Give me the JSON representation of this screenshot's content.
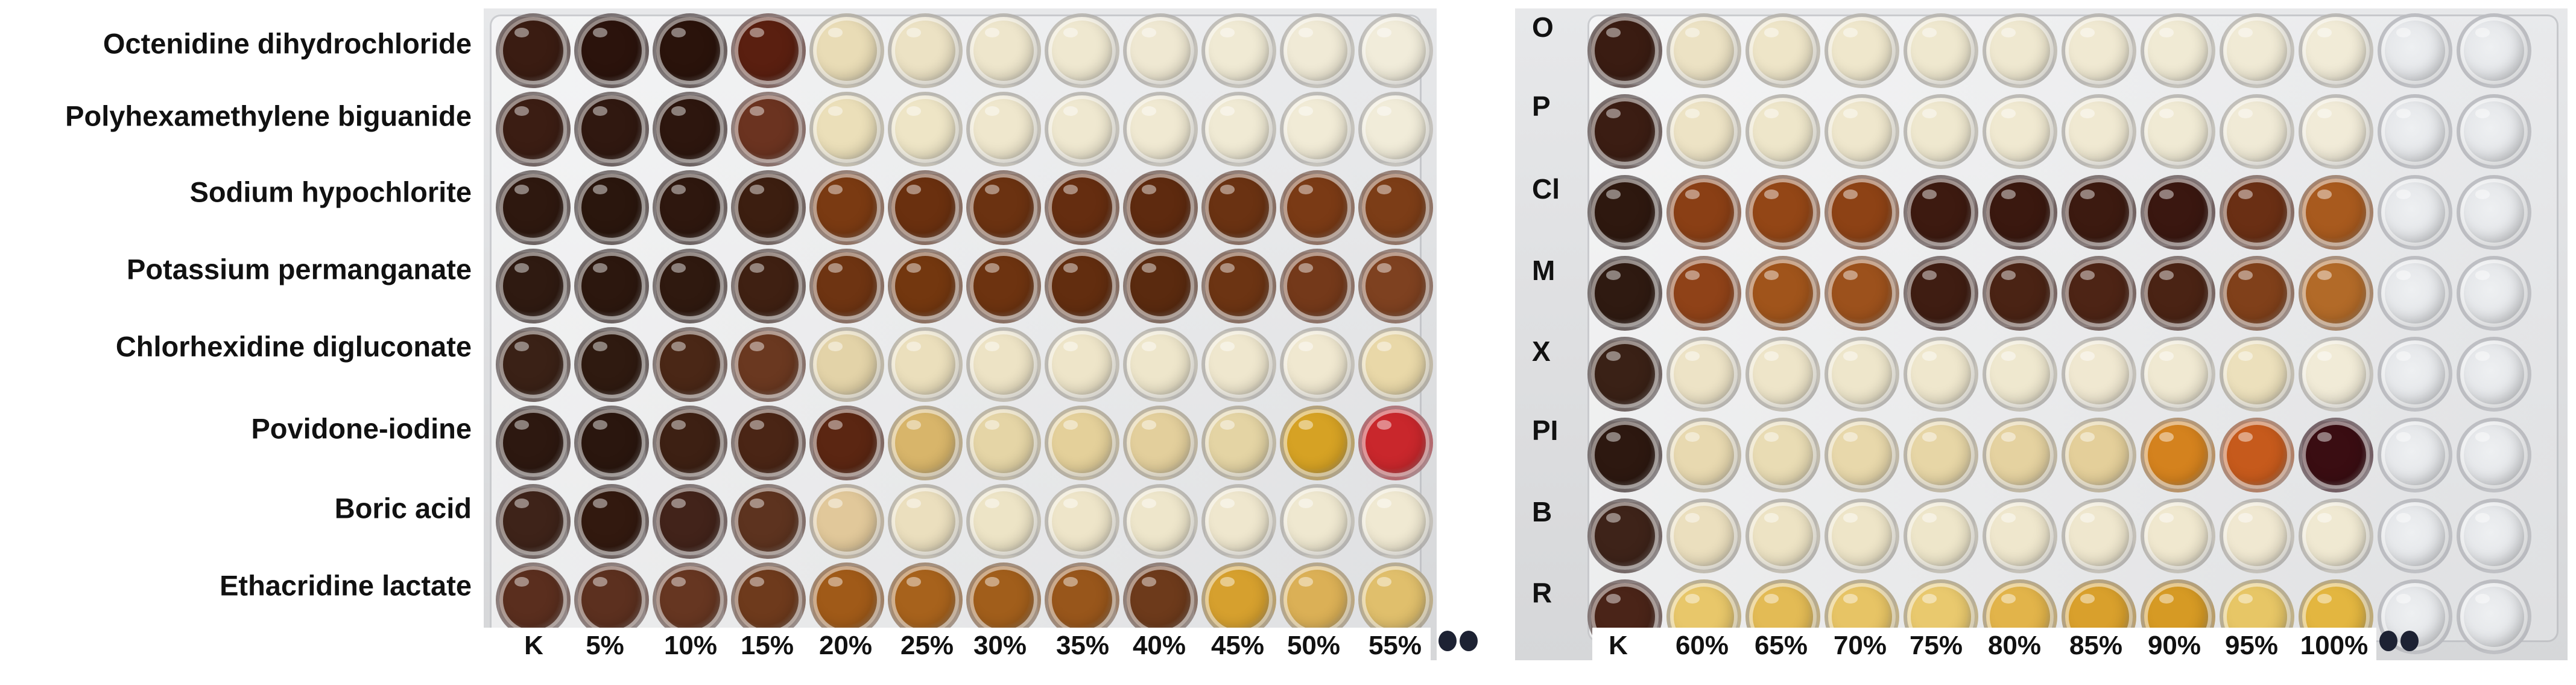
{
  "left_panel": {
    "row_labels": [
      "Octenidine dihydrochloride",
      "Polyhexamethylene biguanide",
      "Sodium hypochlorite",
      "Potassium permanganate",
      "Chlorhexidine digluconate",
      "Povidone-iodine",
      "Boric acid",
      "Ethacridine lactate"
    ],
    "column_labels": [
      "K",
      "5%",
      "10%",
      "15%",
      "20%",
      "25%",
      "30%",
      "35%",
      "40%",
      "45%",
      "50%",
      "55%"
    ],
    "well_colors": [
      [
        "#3a1c12",
        "#2b130c",
        "#2a130b",
        "#5a1f10",
        "#e9dcb6",
        "#ece2c4",
        "#eee6cc",
        "#efe8d0",
        "#efe8d2",
        "#f0ead4",
        "#f0ead6",
        "#f1ecda"
      ],
      [
        "#3b1d13",
        "#301810",
        "#2d160e",
        "#6b3320",
        "#ebdfb9",
        "#eee5c6",
        "#efe7cd",
        "#efe8d0",
        "#f0e9d2",
        "#f0ead4",
        "#f1ebd6",
        "#f1ecd9"
      ],
      [
        "#2e180f",
        "#2a160d",
        "#2e170e",
        "#3c1e10",
        "#7a3a12",
        "#6a300f",
        "#6b3211",
        "#652d10",
        "#5e2a0f",
        "#6a3212",
        "#7a3a15",
        "#7c3d17"
      ],
      [
        "#2f1a11",
        "#2c170e",
        "#2f190f",
        "#3f2012",
        "#6e3412",
        "#73370f",
        "#6d3310",
        "#622d0f",
        "#5a2a0f",
        "#6c3413",
        "#74391a",
        "#7e4120"
      ],
      [
        "#3a2116",
        "#2f1a10",
        "#4a2716",
        "#6a3820",
        "#e3d3a8",
        "#ebdfbc",
        "#ede3c5",
        "#eee5c9",
        "#eee6cb",
        "#efe7ce",
        "#f0e8d0",
        "#e9d8a8"
      ],
      [
        "#2d1810",
        "#2a160e",
        "#3d2013",
        "#4a2515",
        "#5b2612",
        "#d8b56a",
        "#e5d5a6",
        "#e4d09a",
        "#e3cf9c",
        "#e4d4a4",
        "#d6a224",
        "#c9272c"
      ],
      [
        "#3e2319",
        "#32190f",
        "#42231a",
        "#5d331f",
        "#e1c89a",
        "#ebdfbe",
        "#ede4c6",
        "#eee5c9",
        "#eee6cb",
        "#efe7ce",
        "#efe8d0",
        "#f0e9d2"
      ],
      [
        "#5a2e1e",
        "#5c301f",
        "#663621",
        "#6e3a1c",
        "#a05a18",
        "#a7621c",
        "#a15e1b",
        "#98561b",
        "#6d3a1b",
        "#d6a02e",
        "#dbb056",
        "#e0bf6c"
      ]
    ]
  },
  "right_panel": {
    "row_codes": [
      "O",
      "P",
      "Cl",
      "M",
      "X",
      "PI",
      "B",
      "R"
    ],
    "column_labels": [
      "K",
      "60%",
      "65%",
      "70%",
      "75%",
      "80%",
      "85%",
      "90%",
      "95%",
      "100%"
    ],
    "well_colors": [
      [
        "#3a1c12",
        "#ece2c4",
        "#eee5c8",
        "#efe7cc",
        "#efe8cf",
        "#efe8d0",
        "#f0e9d2",
        "#f0ead4",
        "#f0ead5",
        "#f1ebd7"
      ],
      [
        "#3b1d13",
        "#ede3c5",
        "#eee6ca",
        "#efe7cd",
        "#efe8cf",
        "#f0e9d1",
        "#f0e9d2",
        "#f0ead4",
        "#f0ead6",
        "#f1ebd8"
      ],
      [
        "#2e180f",
        "#8a3f15",
        "#934616",
        "#8d4215",
        "#3d1a10",
        "#3a180f",
        "#3c1a10",
        "#3a1710",
        "#6a2f14",
        "#a85a1e"
      ],
      [
        "#2f1a11",
        "#8f4218",
        "#a0541b",
        "#9c511c",
        "#3f1d12",
        "#4a2314",
        "#4d2415",
        "#4a2314",
        "#80401a",
        "#b26a28"
      ],
      [
        "#3a2116",
        "#ede3c6",
        "#eee5c9",
        "#eee6cb",
        "#efe7cd",
        "#efe8cf",
        "#f0e8d1",
        "#f0e9d2",
        "#ece0bc",
        "#f1ebd7"
      ],
      [
        "#2d1810",
        "#e8d9b0",
        "#e9dcb4",
        "#e8d8ab",
        "#e7d6a6",
        "#e5d2a0",
        "#e4cf9a",
        "#d4821e",
        "#c65a1c",
        "#3a0d12"
      ],
      [
        "#3e2319",
        "#ebdfbe",
        "#ede3c4",
        "#eee5c8",
        "#eee6ca",
        "#efe7cd",
        "#efe7ce",
        "#f0e8cf",
        "#f0e8d1",
        "#f0e9d2"
      ],
      [
        "#4a2418",
        "#e8c76a",
        "#e3bb55",
        "#e7c465",
        "#e9c96e",
        "#e2b44a",
        "#d9a02c",
        "#d69a24",
        "#e7c666",
        "#e3b640"
      ]
    ]
  }
}
